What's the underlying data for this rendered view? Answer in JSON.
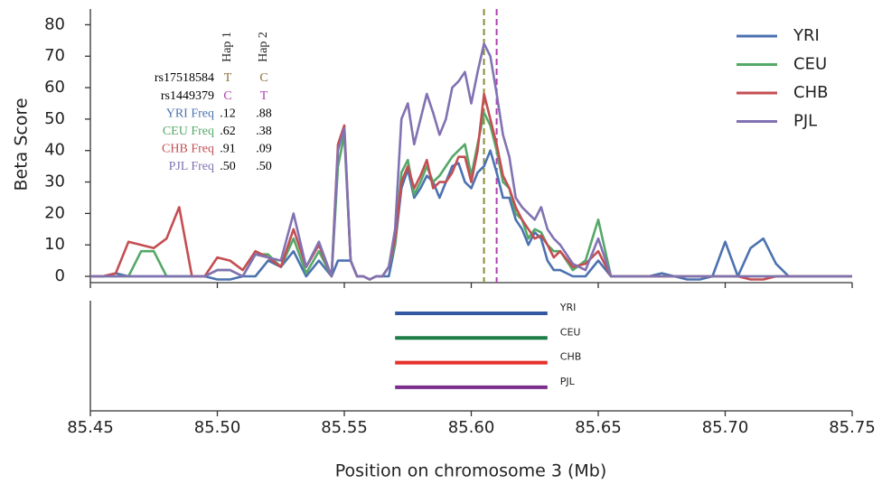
{
  "chart_data": [
    {
      "type": "line",
      "y_label": "Beta Score",
      "xlim": [
        85.45,
        85.75
      ],
      "ylim": [
        -2,
        85
      ],
      "yticks": [
        0,
        10,
        20,
        30,
        40,
        50,
        60,
        70,
        80
      ],
      "xticks": [
        85.45,
        85.5,
        85.55,
        85.6,
        85.65,
        85.7,
        85.75
      ],
      "legend": "upper right",
      "x": [
        85.45,
        85.455,
        85.46,
        85.465,
        85.47,
        85.475,
        85.48,
        85.485,
        85.49,
        85.495,
        85.5,
        85.505,
        85.51,
        85.515,
        85.52,
        85.525,
        85.53,
        85.535,
        85.54,
        85.545,
        85.5475,
        85.55,
        85.5525,
        85.555,
        85.5575,
        85.56,
        85.5625,
        85.565,
        85.5675,
        85.57,
        85.5725,
        85.575,
        85.5775,
        85.58,
        85.5825,
        85.585,
        85.5875,
        85.59,
        85.5925,
        85.595,
        85.5975,
        85.6,
        85.6025,
        85.605,
        85.6075,
        85.61,
        85.6125,
        85.615,
        85.6175,
        85.62,
        85.6225,
        85.625,
        85.6275,
        85.63,
        85.6325,
        85.635,
        85.64,
        85.645,
        85.65,
        85.655,
        85.66,
        85.665,
        85.67,
        85.675,
        85.68,
        85.685,
        85.69,
        85.695,
        85.7,
        85.705,
        85.71,
        85.715,
        85.72,
        85.725,
        85.73,
        85.735,
        85.74,
        85.745,
        85.75
      ],
      "series": [
        {
          "name": "YRI",
          "color": "#4c72b0",
          "values": [
            0,
            0,
            1,
            0,
            0,
            0,
            0,
            0,
            0,
            0,
            -1,
            -1,
            0,
            0,
            5,
            3,
            8,
            0,
            5,
            0,
            5,
            5,
            5,
            0,
            0,
            -1,
            0,
            0,
            0,
            10,
            28,
            34,
            25,
            28,
            32,
            30,
            25,
            30,
            35,
            36,
            30,
            28,
            33,
            35,
            40,
            33,
            25,
            25,
            18,
            15,
            10,
            14,
            12,
            5,
            2,
            2,
            0,
            0,
            5,
            0,
            0,
            0,
            0,
            1,
            0,
            -1,
            -1,
            0,
            11,
            0,
            9,
            12,
            4,
            0,
            0,
            0,
            0,
            0,
            0
          ]
        },
        {
          "name": "CEU",
          "color": "#55a868",
          "values": [
            0,
            0,
            0,
            0,
            8,
            8,
            0,
            0,
            0,
            0,
            2,
            2,
            0,
            7,
            7,
            3,
            12,
            1,
            8,
            0,
            35,
            45,
            5,
            0,
            0,
            -1,
            0,
            0,
            3,
            10,
            33,
            37,
            26,
            30,
            35,
            30,
            32,
            35,
            38,
            40,
            42,
            32,
            42,
            52,
            48,
            40,
            30,
            28,
            20,
            18,
            12,
            15,
            14,
            10,
            8,
            8,
            2,
            5,
            18,
            0,
            0,
            0,
            0,
            0,
            0,
            0,
            0,
            0,
            0,
            0,
            0,
            0,
            0,
            0,
            0,
            0,
            0,
            0,
            0
          ]
        },
        {
          "name": "CHB",
          "color": "#c44e52",
          "values": [
            0,
            0,
            1,
            11,
            10,
            9,
            12,
            22,
            0,
            0,
            6,
            5,
            2,
            8,
            6,
            3,
            15,
            3,
            10,
            0,
            42,
            48,
            5,
            0,
            0,
            -1,
            0,
            0,
            3,
            12,
            30,
            35,
            28,
            32,
            37,
            28,
            30,
            30,
            33,
            38,
            38,
            30,
            40,
            58,
            50,
            42,
            32,
            28,
            22,
            18,
            15,
            12,
            13,
            10,
            6,
            8,
            3,
            4,
            8,
            0,
            0,
            0,
            0,
            0,
            0,
            0,
            0,
            0,
            0,
            0,
            -1,
            -1,
            0,
            0,
            0,
            0,
            0,
            0,
            0
          ]
        },
        {
          "name": "PJL",
          "color": "#8172b2",
          "values": [
            0,
            0,
            0,
            0,
            0,
            0,
            0,
            0,
            0,
            0,
            2,
            2,
            0,
            7,
            6,
            5,
            20,
            3,
            11,
            0,
            40,
            47,
            5,
            0,
            0,
            -1,
            0,
            0,
            3,
            15,
            50,
            55,
            42,
            50,
            58,
            52,
            45,
            50,
            60,
            62,
            65,
            55,
            65,
            74,
            70,
            58,
            45,
            38,
            25,
            22,
            20,
            18,
            22,
            15,
            12,
            10,
            4,
            2,
            12,
            0,
            0,
            0,
            0,
            0,
            0,
            0,
            0,
            0,
            0,
            0,
            0,
            0,
            0,
            0,
            0,
            0,
            0,
            0,
            0
          ]
        }
      ],
      "vlines": [
        {
          "x": 85.605,
          "color": "#8b8b3a"
        },
        {
          "x": 85.61,
          "color": "#b040b0"
        }
      ],
      "table": {
        "headers": [
          "Hap 1",
          "Hap 2"
        ],
        "rows": [
          {
            "label": "rs17518584",
            "label_color": "#000000",
            "value_color": "#8b6f3a",
            "values": [
              "T",
              "C"
            ]
          },
          {
            "label": "rs1449379",
            "label_color": "#000000",
            "value_color": "#b040b0",
            "values": [
              "C",
              "T"
            ]
          },
          {
            "label": "YRI Freq",
            "label_color": "#4c72b0",
            "value_color": "#000000",
            "values": [
              0.12,
              0.88
            ],
            "value_labels": [
              ".12",
              ".88"
            ]
          },
          {
            "label": "CEU Freq",
            "label_color": "#55a868",
            "value_color": "#000000",
            "values": [
              0.62,
              0.38
            ],
            "value_labels": [
              ".62",
              ".38"
            ]
          },
          {
            "label": "CHB Freq",
            "label_color": "#c44e52",
            "value_color": "#000000",
            "values": [
              0.91,
              0.09
            ],
            "value_labels": [
              ".91",
              ".09"
            ]
          },
          {
            "label": "PJL Freq",
            "label_color": "#8172b2",
            "value_color": "#000000",
            "values": [
              0.5,
              0.5
            ],
            "value_labels": [
              ".50",
              ".50"
            ]
          }
        ]
      }
    },
    {
      "type": "range",
      "x_label": "Position on chromosome 3 (Mb)",
      "xlim": [
        85.45,
        85.75
      ],
      "xticks": [
        85.45,
        {
          "value": 85.5,
          "label": "85.50"
        },
        85.55,
        {
          "value": 85.6,
          "label": "85.60"
        },
        85.65,
        {
          "value": 85.7,
          "label": "85.70"
        },
        85.75
      ],
      "ranges": [
        {
          "name": "YRI",
          "color": "#3357a3",
          "start": 85.57,
          "end": 85.63
        },
        {
          "name": "CEU",
          "color": "#1b7c45",
          "start": 85.57,
          "end": 85.63
        },
        {
          "name": "CHB",
          "color": "#e5302c",
          "start": 85.57,
          "end": 85.63
        },
        {
          "name": "PJL",
          "color": "#7b2d8b",
          "start": 85.57,
          "end": 85.63
        }
      ]
    }
  ]
}
